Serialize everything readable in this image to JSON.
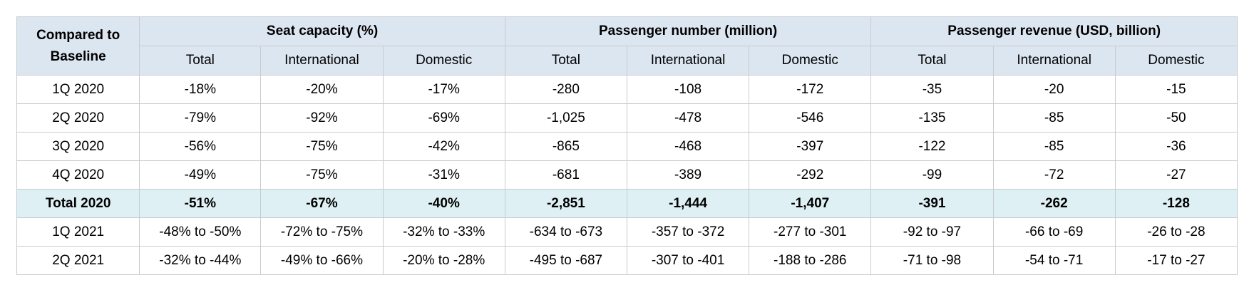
{
  "table": {
    "corner_label_line1": "Compared to",
    "corner_label_line2": "Baseline",
    "groups": [
      "Seat capacity (%)",
      "Passenger number (million)",
      "Passenger revenue (USD, billion)"
    ],
    "subheaders": [
      "Total",
      "International",
      "Domestic",
      "Total",
      "International",
      "Domestic",
      "Total",
      "International",
      "Domestic"
    ],
    "rows": [
      {
        "label": "1Q 2020",
        "total_row": false,
        "cells": [
          "-18%",
          "-20%",
          "-17%",
          "-280",
          "-108",
          "-172",
          "-35",
          "-20",
          "-15"
        ]
      },
      {
        "label": "2Q 2020",
        "total_row": false,
        "cells": [
          "-79%",
          "-92%",
          "-69%",
          "-1,025",
          "-478",
          "-546",
          "-135",
          "-85",
          "-50"
        ]
      },
      {
        "label": "3Q 2020",
        "total_row": false,
        "cells": [
          "-56%",
          "-75%",
          "-42%",
          "-865",
          "-468",
          "-397",
          "-122",
          "-85",
          "-36"
        ]
      },
      {
        "label": "4Q 2020",
        "total_row": false,
        "cells": [
          "-49%",
          "-75%",
          "-31%",
          "-681",
          "-389",
          "-292",
          "-99",
          "-72",
          "-27"
        ]
      },
      {
        "label": "Total 2020",
        "total_row": true,
        "cells": [
          "-51%",
          "-67%",
          "-40%",
          "-2,851",
          "-1,444",
          "-1,407",
          "-391",
          "-262",
          "-128"
        ]
      },
      {
        "label": "1Q 2021",
        "total_row": false,
        "cells": [
          "-48% to -50%",
          "-72% to -75%",
          "-32% to -33%",
          "-634 to -673",
          "-357 to -372",
          "-277 to -301",
          "-92 to -97",
          "-66 to -69",
          "-26 to -28"
        ]
      },
      {
        "label": "2Q 2021",
        "total_row": false,
        "cells": [
          "-32% to -44%",
          "-49% to -66%",
          "-20% to -28%",
          "-495 to -687",
          "-307 to -401",
          "-188 to -286",
          "-71 to -98",
          "-54 to -71",
          "-17 to -27"
        ]
      }
    ]
  },
  "colors": {
    "header_background": "#dce6f1",
    "total_row_background": "#dff0f4",
    "border": "#c8cbd0"
  }
}
